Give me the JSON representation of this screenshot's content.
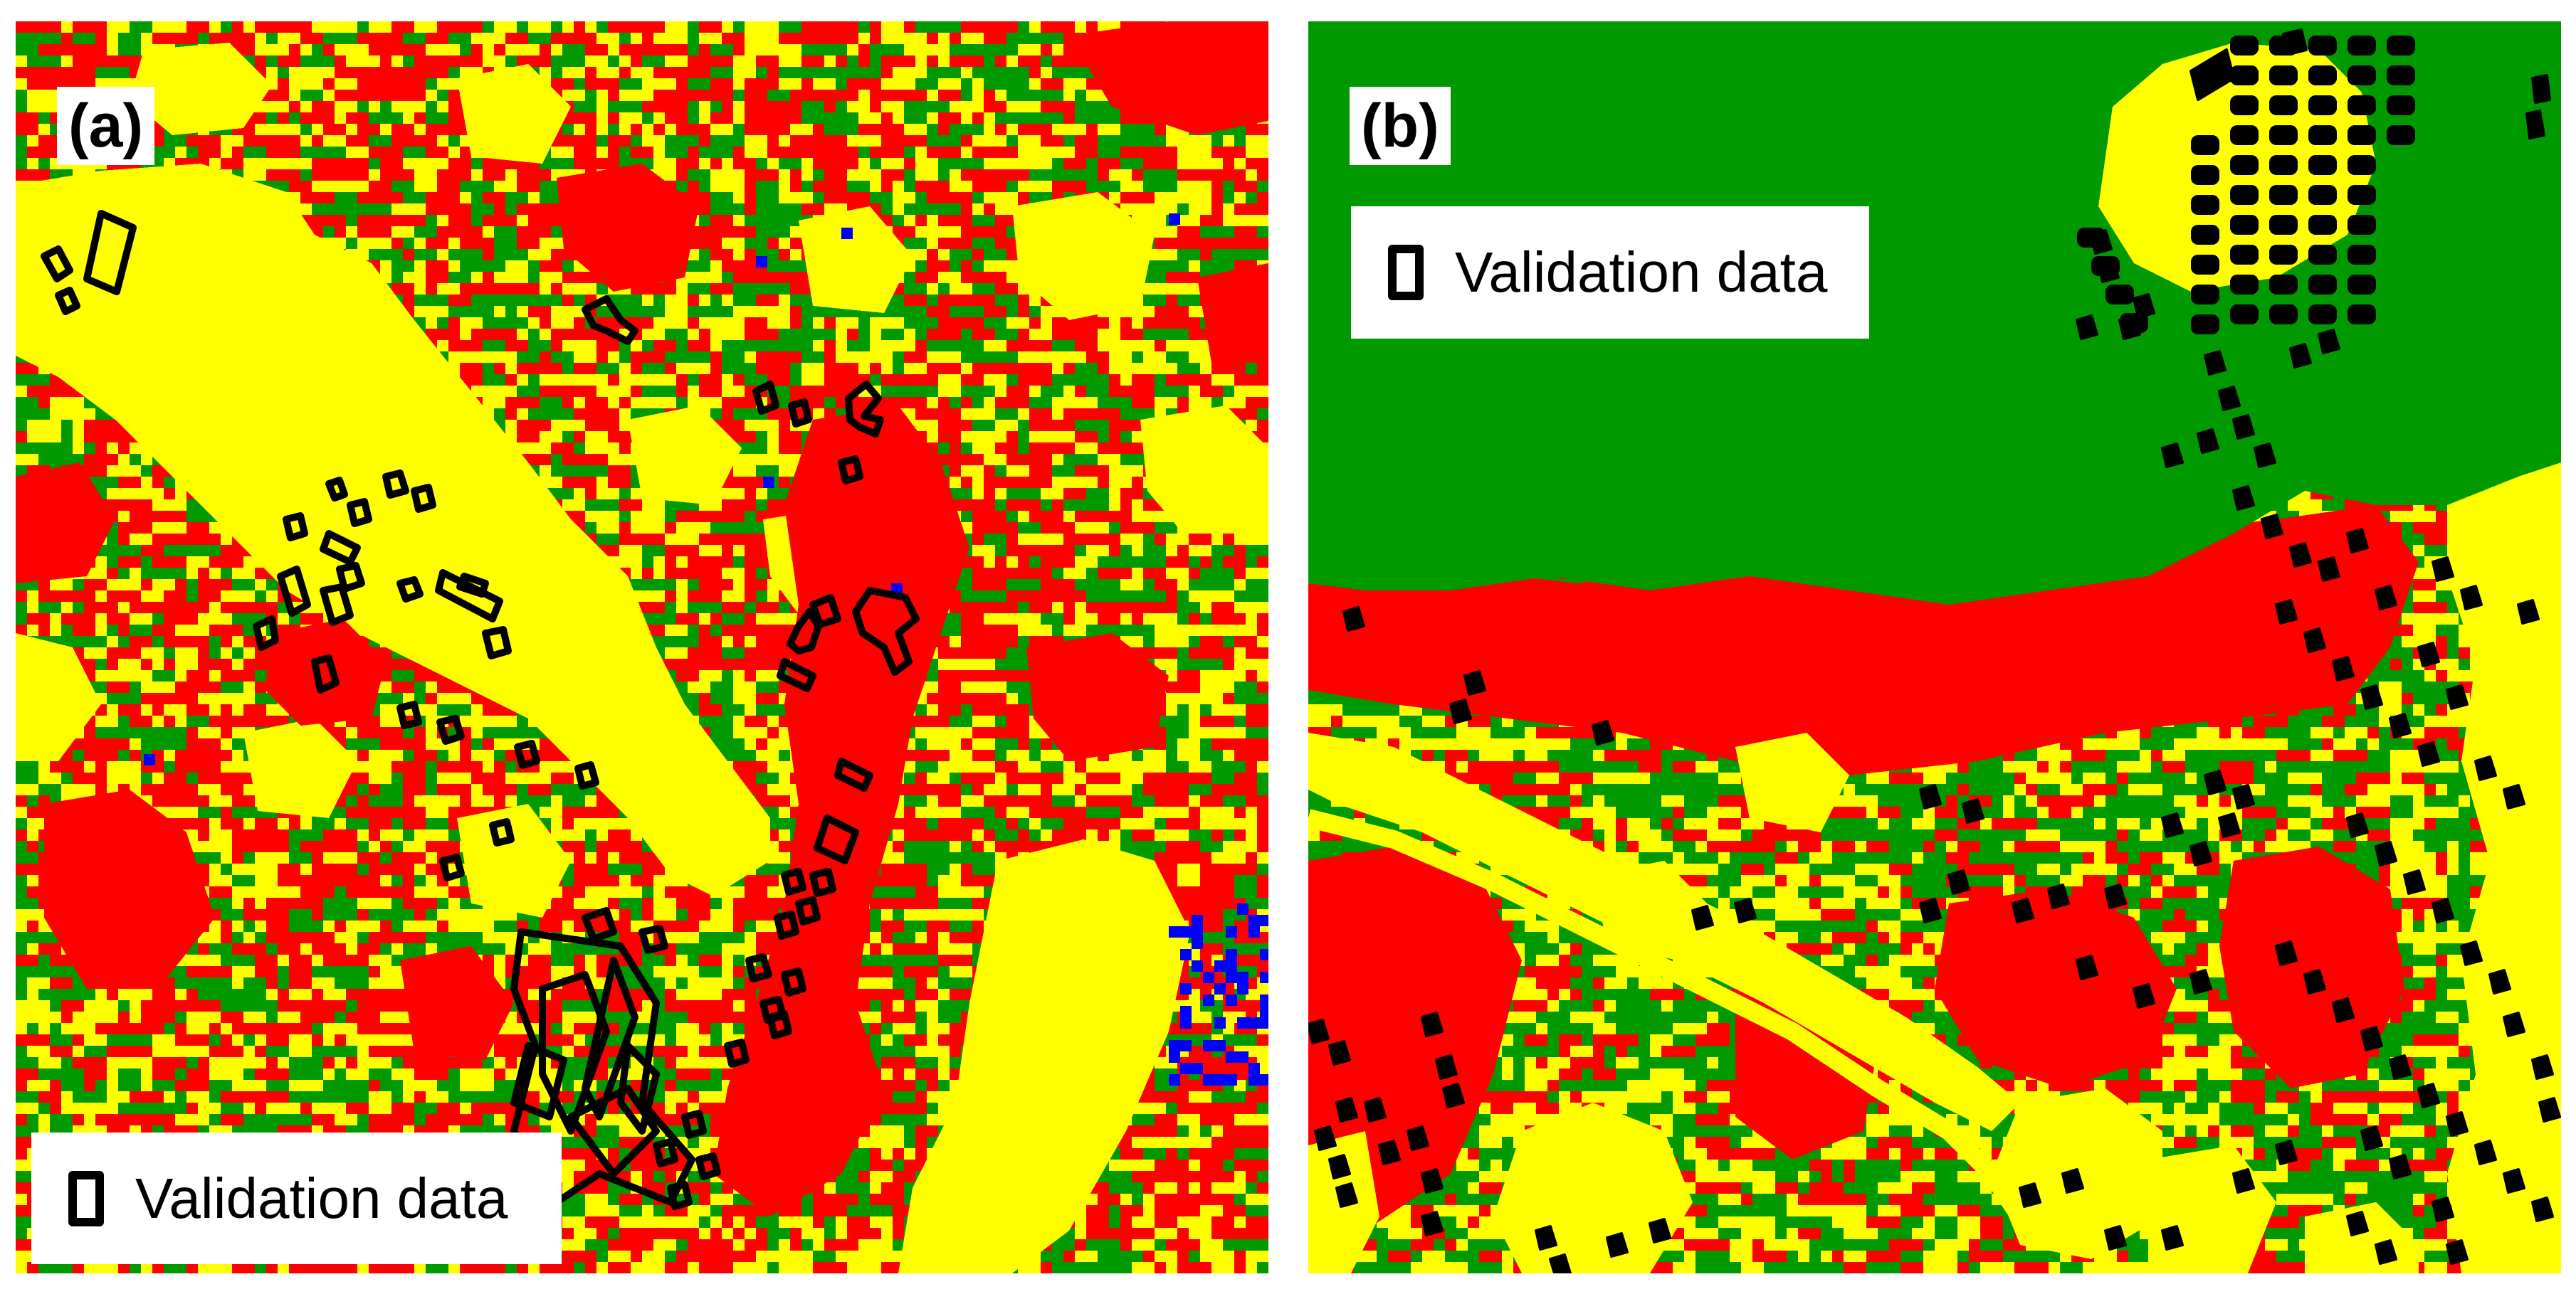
{
  "figure": {
    "panels": [
      {
        "label": "(a)",
        "legend": {
          "swatch": "validation-outline-icon",
          "text": "Validation data"
        }
      },
      {
        "label": "(b)",
        "legend": {
          "swatch": "validation-outline-icon",
          "text": "Validation data"
        }
      }
    ]
  },
  "colors": {
    "vegetation": "#009900",
    "built_up": "#ff0000",
    "bare_soil": "#ffff00",
    "water": "#0000ff",
    "validation_outline": "#000000",
    "background": "#ffffff"
  }
}
